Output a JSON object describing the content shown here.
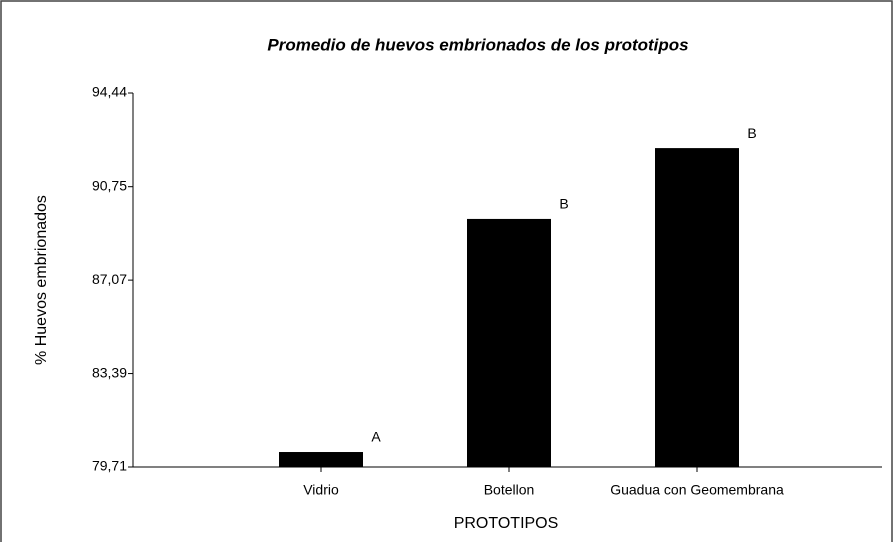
{
  "chart_data": {
    "type": "bar",
    "title": "Promedio de huevos embrionados de los prototipos",
    "x_label": "PROTOTIPOS",
    "y_label": "% Huevos embrionados",
    "categories": [
      "Vidrio",
      "Botellon",
      "Guadua con Geomembrana"
    ],
    "values": [
      80.3,
      89.48,
      92.27
    ],
    "letters": [
      "A",
      "B",
      "B"
    ],
    "color": "#000000",
    "ylim": [
      79.71,
      94.44
    ],
    "yticks": [
      {
        "value": 79.71,
        "label": "79,71"
      },
      {
        "value": 83.39,
        "label": "83,39"
      },
      {
        "value": 87.07,
        "label": "87,07"
      },
      {
        "value": 90.75,
        "label": "90,75"
      },
      {
        "value": 94.44,
        "label": "94,44"
      }
    ],
    "grid": false
  }
}
